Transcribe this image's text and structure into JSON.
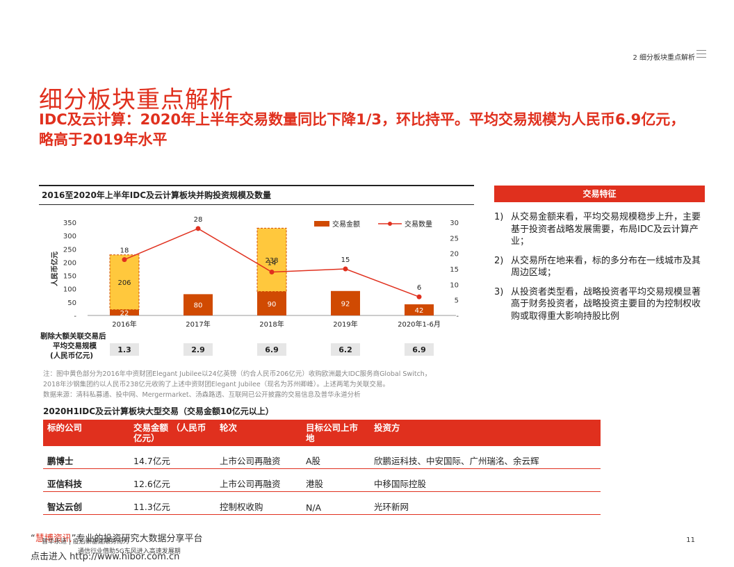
{
  "header": {
    "section": "2 细分板块重点解析"
  },
  "title": "细分板块重点解析",
  "subtitle": "IDC及云计算：2020年上半年交易数量同比下降1/3，环比持平。平均交易规模为人民币6.9亿元，略高于2019年水平",
  "chart": {
    "heading": "2016至2020年上半年IDC及云计算板块并购投资规模及数量",
    "legend_amount": "交易金额",
    "legend_count": "交易数量",
    "ylabel": "人民币亿元",
    "left_ticks": [
      "350",
      "300",
      "250",
      "200",
      "150",
      "100",
      "50",
      "-"
    ],
    "right_ticks": [
      "30",
      "25",
      "20",
      "15",
      "10",
      "5",
      "-"
    ],
    "avg_label_line1": "剔除大额关联交易后",
    "avg_label_line2": "平均交易规模",
    "avg_label_line3": "(人民币亿元)",
    "avg_values": [
      "1.3",
      "2.9",
      "6.9",
      "6.2",
      "6.9"
    ]
  },
  "chart_data": {
    "type": "bar",
    "categories": [
      "2016年",
      "2017年",
      "2018年",
      "2019年",
      "2020年1-6月"
    ],
    "series": [
      {
        "name": "交易金额",
        "type": "bar",
        "values": [
          22,
          80,
          90,
          92,
          42
        ],
        "color": "#d04a02"
      },
      {
        "name": "关联交易金额",
        "type": "bar",
        "values": [
          206,
          0,
          238,
          0,
          0
        ],
        "color": "#ffc83d"
      },
      {
        "name": "交易数量",
        "type": "line",
        "axis": "right",
        "values": [
          18,
          28,
          14,
          15,
          6
        ],
        "color": "#e0301e"
      }
    ],
    "ylim": [
      0,
      350
    ],
    "y2lim": [
      0,
      30
    ],
    "ylabel": "人民币亿元"
  },
  "notes": {
    "line1": "注：图中黄色部分为2016年中资财团Elegant Jubilee以24亿英镑（约合人民币206亿元）收购欧洲最大IDC服务商Global Switch，",
    "line2": "2018年沙钢集团约以人民币238亿元收购了上述中资财团Elegant Jubilee（现名为苏州卿峰）。上述两笔为关联交易。",
    "line3": "数据来源：清科私募通、投中网、Mergermarket、汤森路透、互联网已公开披露的交易信息及普华永道分析"
  },
  "sidebar": {
    "heading": "交易特征",
    "points": [
      {
        "num": "1)",
        "text": "从交易金额来看，平均交易规模稳步上升，主要基于投资者战略发展需要，布局IDC及云计算产业；"
      },
      {
        "num": "2)",
        "text": "从交易所在地来看，标的多分布在一线城市及其周边区域；"
      },
      {
        "num": "3)",
        "text": "从投资者类型看，战略投资者平均交易规模显著高于财务投资者，战略投资主要目的为控制权收购或取得重大影响持股比例"
      }
    ]
  },
  "table": {
    "title": "2020H1IDC及云计算板块大型交易（交易金额10亿元以上）",
    "headers": [
      "标的公司",
      "交易金额 （人民币亿元）",
      "轮次",
      "目标公司上市地",
      "投资方"
    ],
    "rows": [
      [
        "鹏博士",
        "14.7亿元",
        "上市公司再融资",
        "A股",
        "欣鹏运科技、中安国际、广州瑞洺、余云辉"
      ],
      [
        "亚信科技",
        "12.6亿元",
        "上市公司再融资",
        "港股",
        "中移国际控股"
      ],
      [
        "智达云创",
        "11.3亿元",
        "控制权收购",
        "N/A",
        "光环新网"
      ]
    ]
  },
  "footer": {
    "watermark_quote_open": "“",
    "watermark_brand": "慧博资讯",
    "watermark_rest": "”专业的投资研究大数据分享平台",
    "watermark_link": "点击进入 http://www.hibor.com.cn",
    "source": "普华永道 | 疫后新基建顺势而为",
    "dept": "通信行业借助5G东风进入高速发展期",
    "page": "11"
  }
}
